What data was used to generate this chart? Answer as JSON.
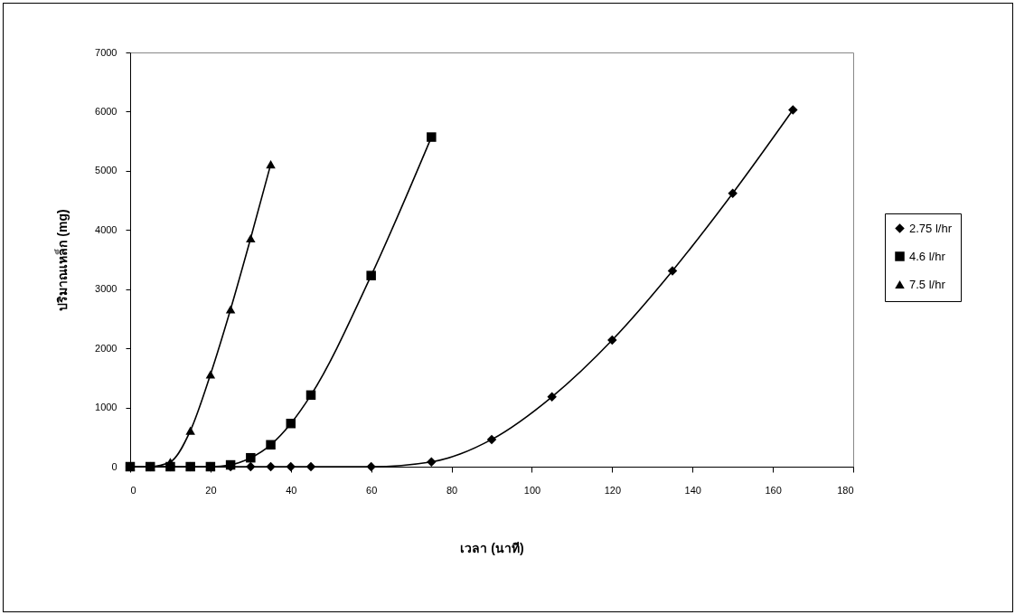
{
  "chart_data": {
    "type": "line",
    "xlabel": "เวลา (นาที)",
    "ylabel": "ปริมาณเหล็ก (mg)",
    "xlim": [
      0,
      180
    ],
    "xticks": [
      0,
      20,
      40,
      60,
      80,
      100,
      120,
      140,
      160,
      180
    ],
    "ylim": [
      0,
      7000
    ],
    "yticks": [
      0,
      1000,
      2000,
      3000,
      4000,
      5000,
      6000,
      7000
    ],
    "grid": false,
    "legend": "right",
    "series": [
      {
        "name": "2.75 l/hr",
        "color": "#000000",
        "marker": "diamond",
        "x": [
          0,
          5,
          10,
          15,
          20,
          25,
          30,
          35,
          40,
          45,
          60,
          75,
          90,
          105,
          120,
          135,
          150,
          165
        ],
        "values": [
          0,
          0,
          0,
          0,
          0,
          0,
          0,
          0,
          0,
          0,
          0,
          80,
          460,
          1180,
          2140,
          3310,
          4620,
          6030
        ]
      },
      {
        "name": "4.6 l/hr",
        "color": "#000000",
        "marker": "square",
        "x": [
          0,
          5,
          10,
          15,
          20,
          25,
          30,
          35,
          40,
          45,
          60,
          75
        ],
        "values": [
          0,
          0,
          0,
          0,
          0,
          30,
          150,
          370,
          730,
          1210,
          3230,
          5570
        ]
      },
      {
        "name": "7.5 l/hr",
        "color": "#000000",
        "marker": "triangle",
        "x": [
          0,
          5,
          10,
          15,
          20,
          25,
          30,
          35
        ],
        "values": [
          0,
          0,
          80,
          610,
          1560,
          2660,
          3860,
          5110
        ]
      }
    ]
  }
}
